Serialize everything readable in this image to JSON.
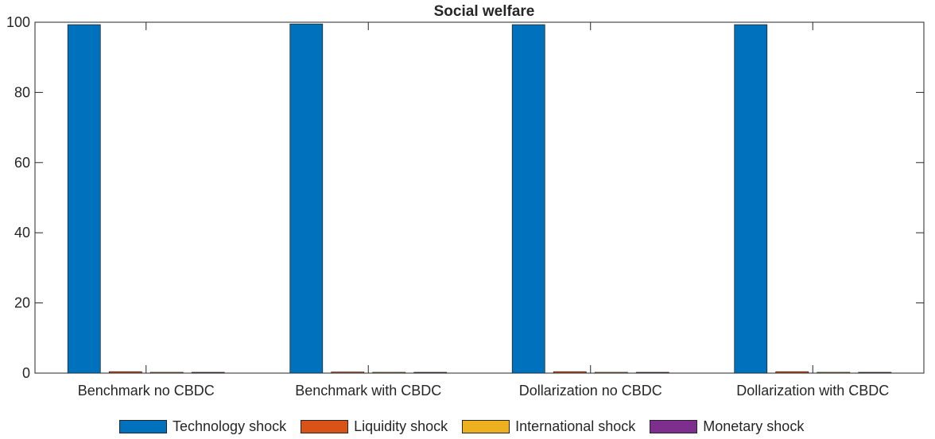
{
  "chart_data": {
    "type": "bar",
    "title": "Social welfare",
    "xlabel": "",
    "ylabel": "",
    "ylim": [
      0,
      100
    ],
    "yticks": [
      "0",
      "20",
      "40",
      "60",
      "80",
      "100"
    ],
    "categories": [
      "Benchmark no CBDC",
      "Benchmark with CBDC",
      "Dollarization no CBDC",
      "Dollarization with CBDC"
    ],
    "series": [
      {
        "name": "Technology shock",
        "color": "#0072BD",
        "values": [
          99.3,
          99.5,
          99.3,
          99.3
        ]
      },
      {
        "name": "Liquidity shock",
        "color": "#D95319",
        "values": [
          0.4,
          0.3,
          0.4,
          0.4
        ]
      },
      {
        "name": "International shock",
        "color": "#EDB120",
        "values": [
          0.1,
          0.1,
          0.1,
          0.1
        ]
      },
      {
        "name": "Monetary shock",
        "color": "#7E2F8E",
        "values": [
          0.1,
          0.1,
          0.1,
          0.1
        ]
      }
    ],
    "grid": false,
    "legend_position": "bottom"
  }
}
